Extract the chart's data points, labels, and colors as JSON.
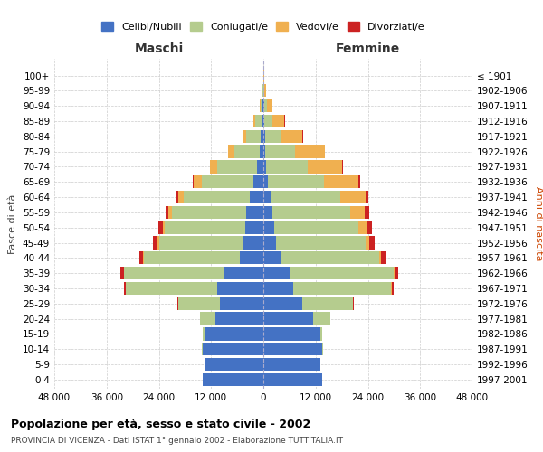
{
  "age_groups": [
    "0-4",
    "5-9",
    "10-14",
    "15-19",
    "20-24",
    "25-29",
    "30-34",
    "35-39",
    "40-44",
    "45-49",
    "50-54",
    "55-59",
    "60-64",
    "65-69",
    "70-74",
    "75-79",
    "80-84",
    "85-89",
    "90-94",
    "95-99",
    "100+"
  ],
  "birth_years": [
    "1997-2001",
    "1992-1996",
    "1987-1991",
    "1982-1986",
    "1977-1981",
    "1972-1976",
    "1967-1971",
    "1962-1966",
    "1957-1961",
    "1952-1956",
    "1947-1951",
    "1942-1946",
    "1937-1941",
    "1932-1936",
    "1927-1931",
    "1922-1926",
    "1917-1921",
    "1912-1916",
    "1907-1911",
    "1902-1906",
    "≤ 1901"
  ],
  "male_celibi": [
    14000,
    13500,
    14000,
    13500,
    11000,
    10000,
    10500,
    9000,
    5500,
    4500,
    4200,
    4000,
    3200,
    2200,
    1500,
    900,
    700,
    500,
    300,
    100,
    50
  ],
  "male_coniugati": [
    0,
    0,
    100,
    400,
    3500,
    9500,
    21000,
    23000,
    22000,
    19500,
    18500,
    17000,
    15000,
    12000,
    9000,
    5800,
    3200,
    1300,
    350,
    70,
    25
  ],
  "male_vedovi": [
    0,
    0,
    2,
    5,
    15,
    40,
    60,
    80,
    120,
    250,
    450,
    750,
    1400,
    1900,
    1700,
    1400,
    900,
    550,
    250,
    60,
    15
  ],
  "male_divorziati": [
    0,
    0,
    3,
    15,
    70,
    180,
    450,
    650,
    900,
    1100,
    950,
    750,
    450,
    180,
    80,
    40,
    25,
    15,
    8,
    4,
    2
  ],
  "female_celibi": [
    13500,
    13000,
    13500,
    13000,
    11500,
    9000,
    6800,
    6000,
    4000,
    2900,
    2400,
    2000,
    1600,
    1000,
    700,
    450,
    350,
    250,
    150,
    60,
    25
  ],
  "female_coniugati": [
    0,
    0,
    150,
    500,
    3800,
    11500,
    22500,
    24000,
    22500,
    20500,
    19500,
    18000,
    16000,
    13000,
    9500,
    6800,
    3800,
    1800,
    600,
    120,
    30
  ],
  "female_vedovi": [
    0,
    0,
    3,
    8,
    25,
    70,
    130,
    250,
    450,
    900,
    1900,
    3300,
    5800,
    7800,
    7800,
    6800,
    4800,
    2800,
    1300,
    350,
    80
  ],
  "female_divorziati": [
    0,
    0,
    4,
    25,
    90,
    280,
    550,
    750,
    1050,
    1250,
    1150,
    950,
    750,
    450,
    280,
    180,
    90,
    50,
    25,
    8,
    2
  ],
  "colors": {
    "celibi": "#4472C4",
    "coniugati": "#b5cc8e",
    "vedovi": "#f0b050",
    "divorziati": "#cc2222"
  },
  "xlim": 48000,
  "title": "Popolazione per età, sesso e stato civile - 2002",
  "subtitle": "PROVINCIA DI VICENZA - Dati ISTAT 1° gennaio 2002 - Elaborazione TUTTITALIA.IT",
  "ylabel_left": "Fasce di età",
  "ylabel_right": "Anni di nascita",
  "xlabel_maschi": "Maschi",
  "xlabel_femmine": "Femmine",
  "xtick_labels": [
    "48.000",
    "36.000",
    "24.000",
    "12.000",
    "0",
    "12.000",
    "24.000",
    "36.000",
    "48.000"
  ],
  "xtick_values": [
    -48000,
    -36000,
    -24000,
    -12000,
    0,
    12000,
    24000,
    36000,
    48000
  ],
  "background_color": "#ffffff",
  "grid_color": "#cccccc",
  "center_line_color": "#aaaacc",
  "legend_labels": [
    "Celibi/Nubili",
    "Coniugati/e",
    "Vedovi/e",
    "Divorziati/e"
  ]
}
